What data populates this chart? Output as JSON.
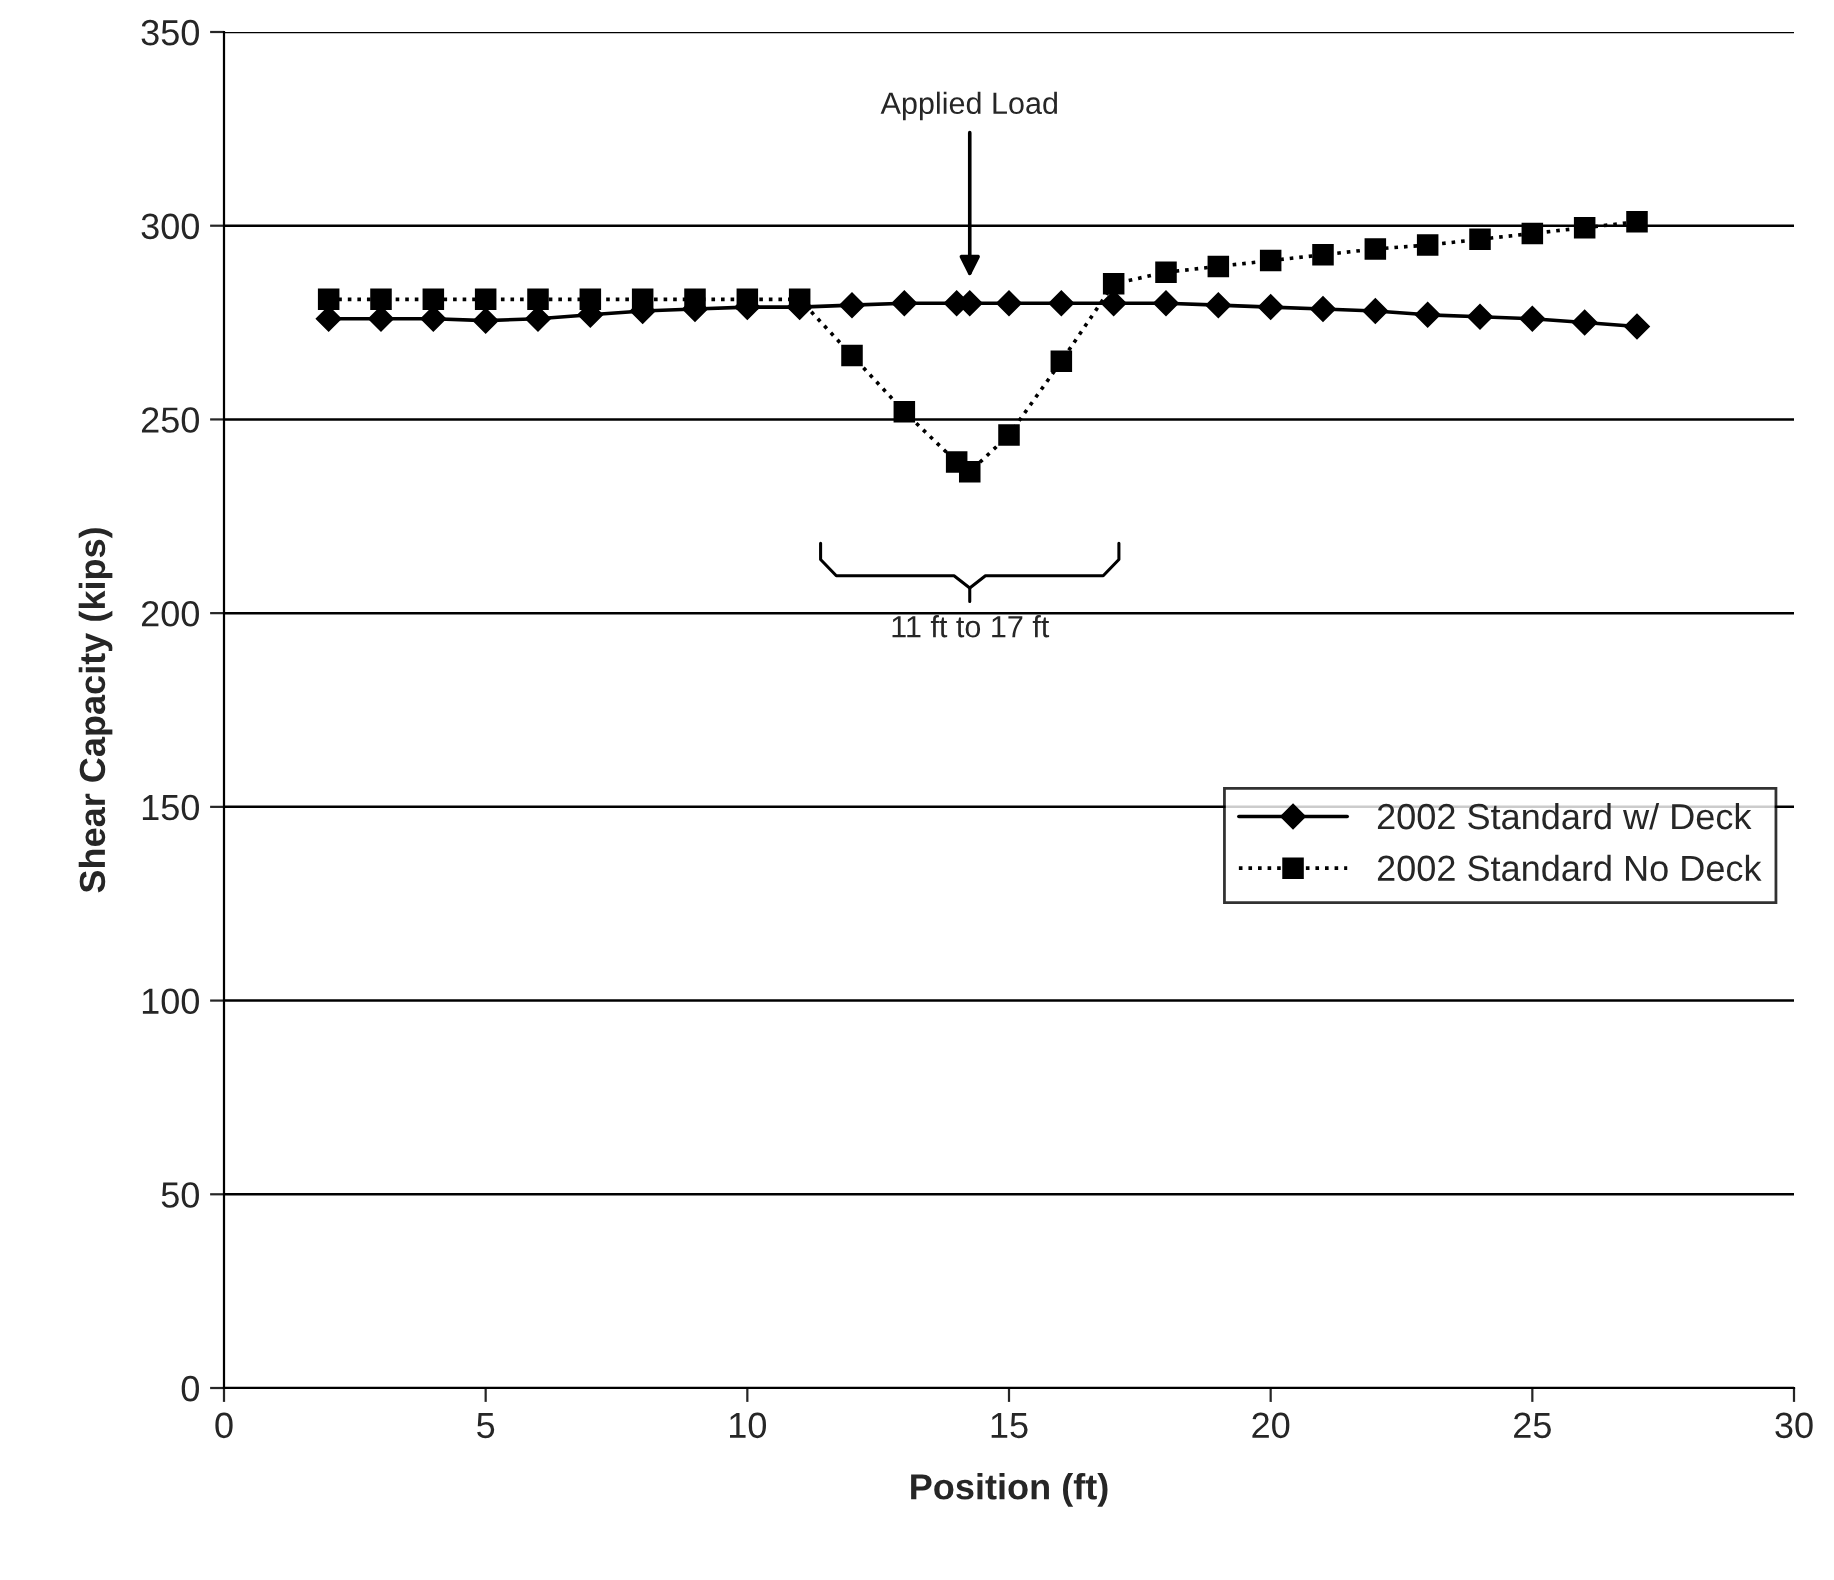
{
  "chart_data": {
    "type": "line",
    "xlabel": "Position (ft)",
    "ylabel": "Shear Capacity (kips)",
    "xlim": [
      0,
      30
    ],
    "xticks": [
      0,
      5,
      10,
      15,
      20,
      25,
      30
    ],
    "ylim": [
      0,
      350
    ],
    "yticks": [
      0,
      50,
      100,
      150,
      200,
      250,
      300,
      350
    ],
    "grid": "y",
    "legend": "right",
    "series": [
      {
        "name": "2002 Standard w/ Deck",
        "color": "#000000",
        "marker": "diamond",
        "line_style": "solid",
        "x": [
          2,
          3,
          4,
          5,
          6,
          7,
          8,
          9,
          10,
          11,
          12,
          13,
          14,
          14.25,
          15,
          16,
          17,
          18,
          19,
          20,
          21,
          22,
          23,
          24,
          25,
          26,
          27
        ],
        "values": [
          276,
          276,
          276,
          275.5,
          276,
          277,
          278,
          278.5,
          279,
          279,
          279.5,
          280,
          280,
          280,
          280,
          280,
          280,
          280,
          279.5,
          279,
          278.5,
          278,
          277,
          276.5,
          276,
          275,
          274
        ]
      },
      {
        "name": "2002 Standard No Deck",
        "color": "#000000",
        "marker": "square",
        "line_style": "dotted",
        "x": [
          2,
          3,
          4,
          5,
          6,
          7,
          8,
          9,
          10,
          11,
          12,
          13,
          14,
          14.25,
          15,
          16,
          17,
          18,
          19,
          20,
          21,
          22,
          23,
          24,
          25,
          26,
          27
        ],
        "values": [
          281,
          281,
          281,
          281,
          281,
          281,
          281,
          281,
          281,
          281,
          266.5,
          252,
          239,
          236.5,
          246,
          265,
          285,
          288,
          289.5,
          291,
          292.5,
          294,
          295,
          296.5,
          298,
          299.5,
          301
        ]
      }
    ],
    "annotations": [
      "Applied Load",
      "11 ft to 17 ft"
    ]
  }
}
